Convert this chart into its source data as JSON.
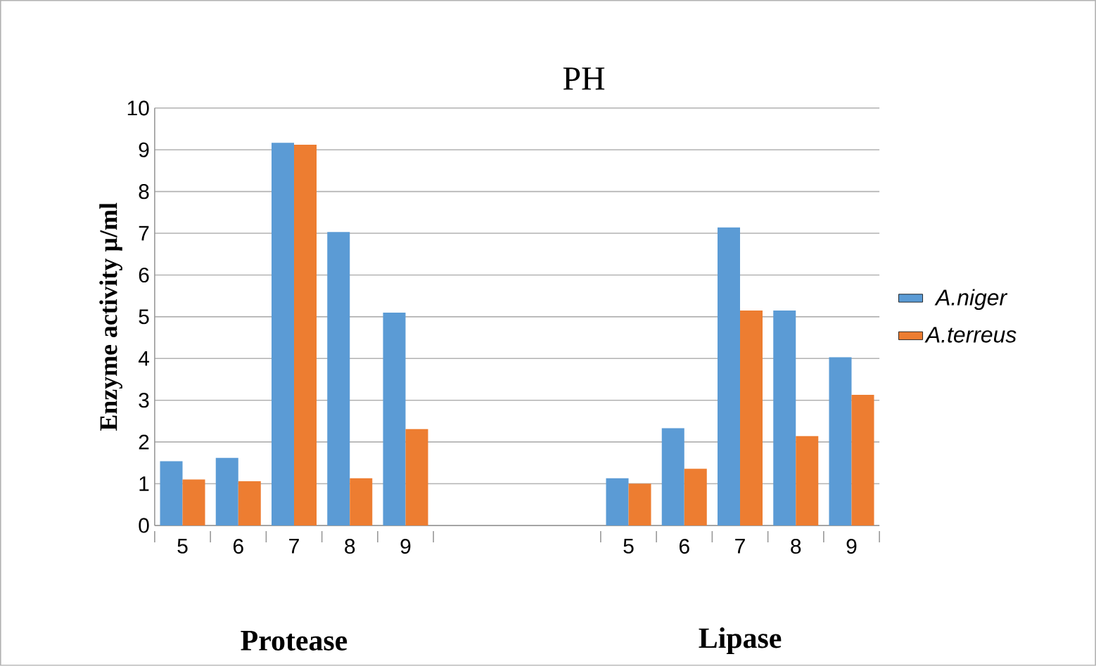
{
  "chart_data": {
    "type": "bar",
    "title": "PH",
    "ylabel": "Enzyme activity µ/ml",
    "categories": [
      "5",
      "6",
      "7",
      "8",
      "9",
      null,
      null,
      null,
      "5",
      "6",
      "7",
      "8",
      "9"
    ],
    "series": [
      {
        "name": "A.niger",
        "color": "#5b9bd5",
        "values": [
          1.54,
          1.62,
          9.17,
          7.03,
          5.1,
          null,
          null,
          null,
          1.13,
          2.33,
          7.14,
          5.15,
          4.03
        ]
      },
      {
        "name": "A.terreus",
        "color": "#ed7d31",
        "values": [
          1.1,
          1.06,
          9.12,
          1.13,
          2.31,
          null,
          null,
          null,
          1.0,
          1.36,
          5.15,
          2.14,
          3.13
        ]
      }
    ],
    "ylim": [
      0,
      10
    ],
    "yticks": [
      0,
      1,
      2,
      3,
      4,
      5,
      6,
      7,
      8,
      9,
      10
    ],
    "grid": "y",
    "legend": "right",
    "annotations": [
      "Protease",
      "Lipase"
    ]
  }
}
